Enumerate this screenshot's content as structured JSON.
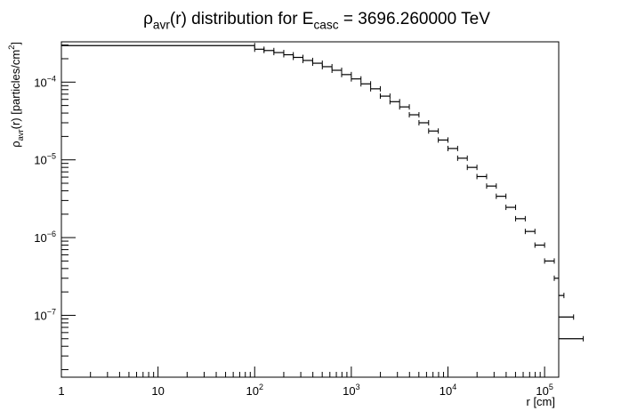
{
  "chart_data": {
    "type": "scatter",
    "title": {
      "parts": [
        {
          "text": "ρ",
          "shift": "none"
        },
        {
          "text": "avr",
          "shift": "sub"
        },
        {
          "text": "(r) distribution for E",
          "shift": "none"
        },
        {
          "text": "casc",
          "shift": "sub"
        },
        {
          "text": " = 3696.260000 TeV",
          "shift": "none"
        }
      ]
    },
    "xlabel": "r [cm]",
    "ylabel": {
      "parts": [
        {
          "text": "ρ",
          "shift": "none"
        },
        {
          "text": "avr",
          "shift": "sub"
        },
        {
          "text": "(r) [particles/cm",
          "shift": "none"
        },
        {
          "text": "2",
          "shift": "super"
        },
        {
          "text": "]",
          "shift": "none"
        }
      ]
    },
    "x_scale": "log",
    "y_scale": "log",
    "xlim": [
      1,
      140000
    ],
    "ylim": [
      1.6e-08,
      0.00033
    ],
    "x_ticks": [
      {
        "value": 1,
        "base": "1",
        "exp": ""
      },
      {
        "value": 10,
        "base": "10",
        "exp": ""
      },
      {
        "value": 100,
        "base": "10",
        "exp": "2"
      },
      {
        "value": 1000,
        "base": "10",
        "exp": "3"
      },
      {
        "value": 10000,
        "base": "10",
        "exp": "4"
      },
      {
        "value": 100000,
        "base": "10",
        "exp": "5"
      }
    ],
    "y_ticks": [
      {
        "value": 1e-07,
        "base": "10",
        "exp": "−7"
      },
      {
        "value": 1e-06,
        "base": "10",
        "exp": "−6"
      },
      {
        "value": 1e-05,
        "base": "10",
        "exp": "−5"
      },
      {
        "value": 0.0001,
        "base": "10",
        "exp": "−4"
      }
    ],
    "grid": false,
    "legend": "none",
    "colors": {
      "markers": "#000000",
      "axes": "#000000",
      "background": "#ffffff"
    },
    "series": [
      {
        "points": [
          {
            "x_low": 1,
            "x_high": 100,
            "y": 0.000295
          },
          {
            "x_low": 100,
            "x_high": 125,
            "y": 0.000265
          },
          {
            "x_low": 125,
            "x_high": 158,
            "y": 0.000255
          },
          {
            "x_low": 158,
            "x_high": 200,
            "y": 0.00024
          },
          {
            "x_low": 200,
            "x_high": 251,
            "y": 0.000225
          },
          {
            "x_low": 251,
            "x_high": 316,
            "y": 0.000208
          },
          {
            "x_low": 316,
            "x_high": 398,
            "y": 0.00019
          },
          {
            "x_low": 398,
            "x_high": 501,
            "y": 0.000175
          },
          {
            "x_low": 501,
            "x_high": 631,
            "y": 0.000158
          },
          {
            "x_low": 631,
            "x_high": 794,
            "y": 0.000142
          },
          {
            "x_low": 794,
            "x_high": 1000,
            "y": 0.000125
          },
          {
            "x_low": 1000,
            "x_high": 1259,
            "y": 0.00011
          },
          {
            "x_low": 1259,
            "x_high": 1585,
            "y": 9.5e-05
          },
          {
            "x_low": 1585,
            "x_high": 1995,
            "y": 8.2e-05
          },
          {
            "x_low": 1995,
            "x_high": 2512,
            "y": 6.6e-05
          },
          {
            "x_low": 2512,
            "x_high": 3162,
            "y": 5.6e-05
          },
          {
            "x_low": 3162,
            "x_high": 3981,
            "y": 4.8e-05
          },
          {
            "x_low": 3981,
            "x_high": 5012,
            "y": 3.8e-05
          },
          {
            "x_low": 5012,
            "x_high": 6310,
            "y": 3e-05
          },
          {
            "x_low": 6310,
            "x_high": 7943,
            "y": 2.35e-05
          },
          {
            "x_low": 7943,
            "x_high": 10000,
            "y": 1.8e-05
          },
          {
            "x_low": 10000,
            "x_high": 12589,
            "y": 1.4e-05
          },
          {
            "x_low": 12589,
            "x_high": 15849,
            "y": 1.05e-05
          },
          {
            "x_low": 15849,
            "x_high": 19953,
            "y": 8e-06
          },
          {
            "x_low": 19953,
            "x_high": 25119,
            "y": 6.1e-06
          },
          {
            "x_low": 25119,
            "x_high": 31623,
            "y": 4.6e-06
          },
          {
            "x_low": 31623,
            "x_high": 39811,
            "y": 3.4e-06
          },
          {
            "x_low": 39811,
            "x_high": 50119,
            "y": 2.45e-06
          },
          {
            "x_low": 50119,
            "x_high": 63096,
            "y": 1.75e-06
          },
          {
            "x_low": 63096,
            "x_high": 79433,
            "y": 1.2e-06
          },
          {
            "x_low": 79433,
            "x_high": 100000,
            "y": 8e-07
          },
          {
            "x_low": 100000,
            "x_high": 125893,
            "y": 5e-07
          },
          {
            "x_low": 125893,
            "x_high": 158489,
            "y": 3e-07
          },
          {
            "x_low": 158489,
            "x_high": 199526,
            "y": 1.8e-07
          },
          {
            "x_low": 199526,
            "x_high": 251189,
            "y": 9.5e-08
          },
          {
            "x_low": 251189,
            "x_high": 316228,
            "y": 5e-08
          }
        ]
      }
    ]
  }
}
